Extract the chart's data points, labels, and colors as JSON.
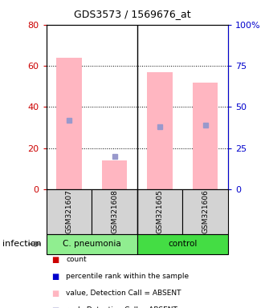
{
  "title": "GDS3573 / 1569676_at",
  "samples": [
    "GSM321607",
    "GSM321608",
    "GSM321605",
    "GSM321606"
  ],
  "bar_values": [
    64,
    14,
    57,
    52
  ],
  "rank_values": [
    42,
    20,
    38,
    39
  ],
  "left_ylim": [
    0,
    80
  ],
  "right_ylim": [
    0,
    100
  ],
  "left_yticks": [
    0,
    20,
    40,
    60,
    80
  ],
  "right_yticks": [
    0,
    25,
    50,
    75,
    100
  ],
  "right_yticklabels": [
    "0",
    "25",
    "50",
    "75",
    "100%"
  ],
  "bar_color": "#ffb6c1",
  "rank_color": "#9999cc",
  "left_tick_color": "#cc0000",
  "right_tick_color": "#0000cc",
  "group_label_c_pneumonia": "C. pneumonia",
  "group_label_control": "control",
  "group_bg_c_pneumonia": "#90ee90",
  "group_bg_control": "#44dd44",
  "sample_bg": "#d3d3d3",
  "infection_label": "infection",
  "legend_colors": [
    "#cc0000",
    "#0000cc",
    "#ffb6c1",
    "#bbbbdd"
  ],
  "legend_labels": [
    "count",
    "percentile rank within the sample",
    "value, Detection Call = ABSENT",
    "rank, Detection Call = ABSENT"
  ]
}
